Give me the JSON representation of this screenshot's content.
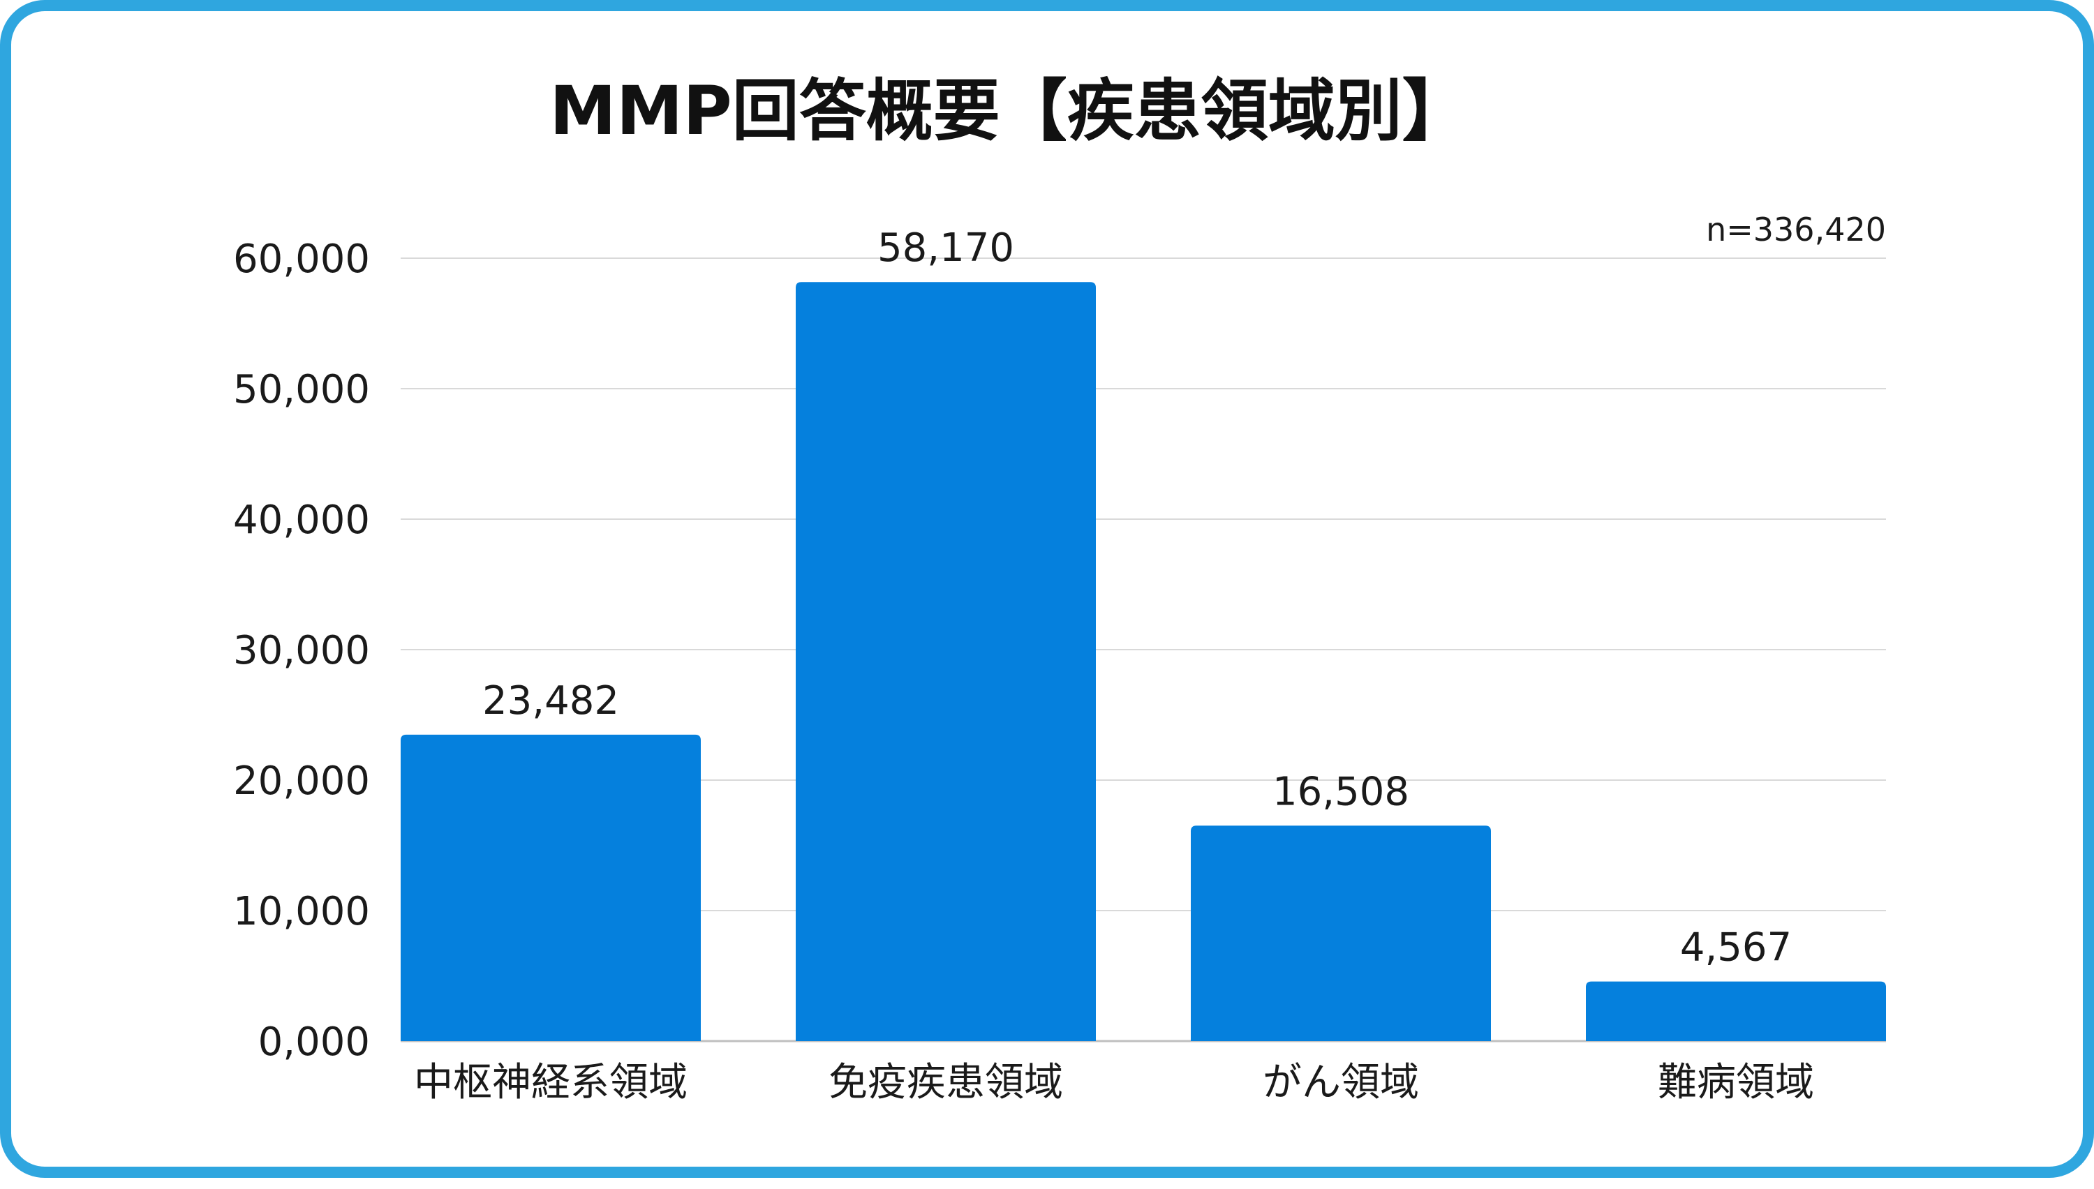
{
  "chart_data": {
    "type": "bar",
    "title": "MMP回答概要【疾患領域別】",
    "note": "n=336,420",
    "categories": [
      "中枢神経系領域",
      "免疫疾患領域",
      "がん領域",
      "難病領域"
    ],
    "values": [
      23482,
      58170,
      16508,
      4567
    ],
    "value_labels": [
      "23,482",
      "58,170",
      "16,508",
      "4,567"
    ],
    "ylim": [
      0,
      60000
    ],
    "yticks": [
      0,
      10000,
      20000,
      30000,
      40000,
      50000,
      60000
    ],
    "ytick_labels": [
      "0,000",
      "10,000",
      "20,000",
      "30,000",
      "40,000",
      "50,000",
      "60,000"
    ],
    "xlabel": "",
    "ylabel": "",
    "grid": true,
    "legend": "none"
  },
  "colors": {
    "bar": "#0580dd",
    "frame": "#2fa6df",
    "grid": "#d9d9d9",
    "axis": "#bfbfbf"
  }
}
